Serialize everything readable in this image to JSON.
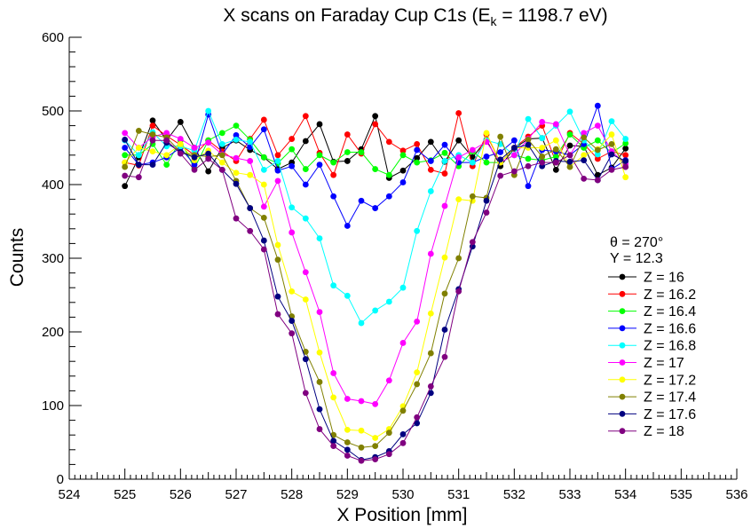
{
  "chart_data": {
    "type": "line",
    "title": "X scans on Faraday Cup C1s (E",
    "title_subscript": "k",
    "title_suffix": " = 1198.7 eV)",
    "xlabel": "X Position [mm]",
    "ylabel": "Counts",
    "xlim": [
      524,
      536
    ],
    "ylim": [
      0,
      600
    ],
    "x_ticks": [
      524,
      525,
      526,
      527,
      528,
      529,
      530,
      531,
      532,
      533,
      534,
      535,
      536
    ],
    "y_ticks": [
      0,
      100,
      200,
      300,
      400,
      500,
      600
    ],
    "grid": false,
    "legend_position": "right",
    "annotations": [
      "θ = 270°",
      "Y = 12.3"
    ],
    "x": [
      525,
      525.25,
      525.5,
      525.75,
      526,
      526.25,
      526.5,
      526.75,
      527,
      527.25,
      527.5,
      527.75,
      528,
      528.25,
      528.5,
      528.75,
      529,
      529.25,
      529.5,
      529.75,
      530,
      530.25,
      530.5,
      530.75,
      531,
      531.25,
      531.5,
      531.75,
      532,
      532.25,
      532.5,
      532.75,
      533,
      533.25,
      533.5,
      533.75,
      534
    ],
    "series": [
      {
        "name": "Z = 16",
        "color": "#000000",
        "values": [
          398,
          437,
          487,
          460,
          485,
          450,
          418,
          450,
          460,
          447,
          437,
          421,
          430,
          459,
          482,
          431,
          432,
          448,
          493,
          409,
          419,
          436,
          458,
          431,
          460,
          437,
          461,
          425,
          449,
          462,
          463,
          420,
          453,
          452,
          413,
          423,
          449
        ]
      },
      {
        "name": "Z = 16.2",
        "color": "#ff0000",
        "values": [
          430,
          426,
          480,
          466,
          454,
          440,
          460,
          445,
          432,
          462,
          488,
          440,
          462,
          493,
          443,
          413,
          468,
          442,
          482,
          458,
          446,
          455,
          420,
          415,
          497,
          425,
          468,
          430,
          450,
          465,
          480,
          430,
          470,
          455,
          435,
          445,
          440
        ]
      },
      {
        "name": "Z = 16.4",
        "color": "#00ff00",
        "values": [
          440,
          440,
          455,
          427,
          460,
          422,
          460,
          470,
          480,
          461,
          437,
          429,
          448,
          421,
          440,
          430,
          444,
          444,
          421,
          413,
          440,
          430,
          433,
          443,
          425,
          445,
          430,
          430,
          440,
          435,
          433,
          438,
          468,
          450,
          460,
          443,
          456
        ]
      },
      {
        "name": "Z = 16.6",
        "color": "#0000ff",
        "values": [
          450,
          427,
          430,
          437,
          450,
          427,
          495,
          441,
          467,
          451,
          475,
          419,
          425,
          400,
          427,
          384,
          344,
          378,
          368,
          384,
          403,
          447,
          432,
          454,
          430,
          430,
          438,
          444,
          460,
          398,
          447,
          445,
          440,
          455,
          507,
          421,
          433
        ]
      },
      {
        "name": "Z = 16.8",
        "color": "#00ffff",
        "values": [
          460,
          440,
          471,
          452,
          452,
          446,
          500,
          455,
          461,
          458,
          420,
          432,
          369,
          354,
          327,
          263,
          249,
          212,
          229,
          241,
          260,
          337,
          391,
          432,
          440,
          430,
          460,
          455,
          440,
          489,
          463,
          480,
          499,
          460,
          441,
          486,
          462
        ]
      },
      {
        "name": "Z = 17",
        "color": "#ff00ff",
        "values": [
          470,
          450,
          465,
          470,
          462,
          450,
          457,
          441,
          436,
          432,
          370,
          405,
          335,
          281,
          227,
          144,
          109,
          106,
          102,
          134,
          185,
          214,
          306,
          371,
          437,
          447,
          458,
          430,
          440,
          462,
          485,
          482,
          440,
          470,
          480,
          445,
          428
        ]
      },
      {
        "name": "Z = 17.2",
        "color": "#ffff00",
        "values": [
          430,
          450,
          445,
          440,
          455,
          433,
          446,
          430,
          416,
          413,
          400,
          318,
          255,
          244,
          172,
          111,
          67,
          66,
          56,
          68,
          99,
          145,
          225,
          301,
          380,
          378,
          470,
          430,
          450,
          450,
          450,
          460,
          424,
          440,
          448,
          468,
          410
        ]
      },
      {
        "name": "Z = 17.4",
        "color": "#808000",
        "values": [
          424,
          473,
          468,
          464,
          444,
          440,
          438,
          440,
          405,
          368,
          355,
          298,
          221,
          173,
          132,
          60,
          50,
          43,
          45,
          63,
          93,
          129,
          171,
          252,
          300,
          384,
          382,
          465,
          413,
          461,
          438,
          448,
          424,
          464,
          447,
          455,
          424
        ]
      },
      {
        "name": "Z = 17.6",
        "color": "#000080",
        "values": [
          461,
          427,
          427,
          457,
          444,
          437,
          442,
          420,
          401,
          368,
          324,
          248,
          215,
          163,
          95,
          52,
          40,
          26,
          30,
          38,
          61,
          76,
          117,
          203,
          258,
          316,
          378,
          434,
          450,
          454,
          425,
          432,
          431,
          433,
          406,
          441,
          432
        ]
      },
      {
        "name": "Z = 18",
        "color": "#800080",
        "values": [
          412,
          410,
          460,
          460,
          442,
          420,
          435,
          420,
          354,
          337,
          312,
          224,
          198,
          117,
          68,
          45,
          32,
          25,
          27,
          34,
          49,
          84,
          126,
          166,
          255,
          322,
          362,
          412,
          418,
          425,
          430,
          430,
          440,
          408,
          406,
          420,
          424
        ]
      }
    ]
  }
}
